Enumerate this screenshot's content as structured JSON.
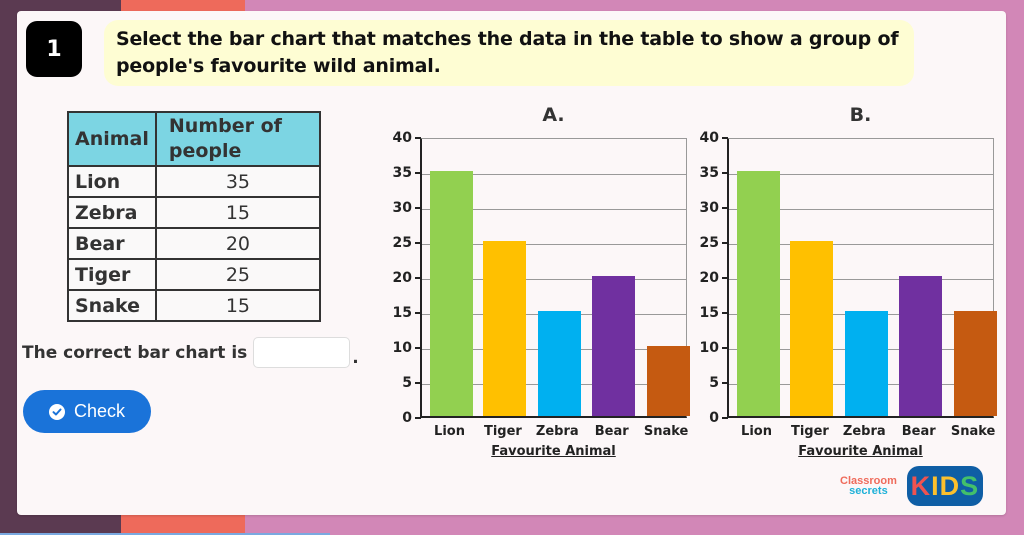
{
  "question": {
    "number": "1",
    "prompt": "Select the bar chart that matches the data in the table to show a group of people's favourite wild animal."
  },
  "table": {
    "headers": [
      "Animal",
      "Number of people"
    ],
    "rows": [
      {
        "animal": "Lion",
        "count": "35"
      },
      {
        "animal": "Zebra",
        "count": "15"
      },
      {
        "animal": "Bear",
        "count": "20"
      },
      {
        "animal": "Tiger",
        "count": "25"
      },
      {
        "animal": "Snake",
        "count": "15"
      }
    ]
  },
  "answer": {
    "label": "The correct bar chart is",
    "value": "",
    "suffix": "."
  },
  "check_button": {
    "label": "Check",
    "icon": "check-circle-icon"
  },
  "chart_data": [
    {
      "type": "bar",
      "title": "A.",
      "categories": [
        "Lion",
        "Tiger",
        "Zebra",
        "Bear",
        "Snake"
      ],
      "values": [
        35,
        25,
        15,
        20,
        10
      ],
      "colors": [
        "#92d050",
        "#ffc000",
        "#00b0f0",
        "#7030a0",
        "#c55a11"
      ],
      "xlabel": "Favourite Animal",
      "ylabel": "",
      "ylim": [
        0,
        40
      ],
      "yticks": [
        0,
        5,
        10,
        15,
        20,
        25,
        30,
        35,
        40
      ],
      "grid": true
    },
    {
      "type": "bar",
      "title": "B.",
      "categories": [
        "Lion",
        "Tiger",
        "Zebra",
        "Bear",
        "Snake"
      ],
      "values": [
        35,
        25,
        15,
        20,
        15
      ],
      "colors": [
        "#92d050",
        "#ffc000",
        "#00b0f0",
        "#7030a0",
        "#c55a11"
      ],
      "xlabel": "Favourite Animal",
      "ylabel": "",
      "ylim": [
        0,
        40
      ],
      "yticks": [
        0,
        5,
        10,
        15,
        20,
        25,
        30,
        35,
        40
      ],
      "grid": true
    }
  ],
  "branding": {
    "line1": "Classroom",
    "line2": "secrets",
    "kids_letters": [
      "K",
      "I",
      "D",
      "S"
    ],
    "kids_colors": [
      "#ef5350",
      "#fbc02d",
      "#fbc02d",
      "#43c06a"
    ]
  },
  "colors": {
    "header_fill": "#7cd5e3",
    "prompt_fill": "#fefdd3",
    "button": "#1a73d9"
  }
}
